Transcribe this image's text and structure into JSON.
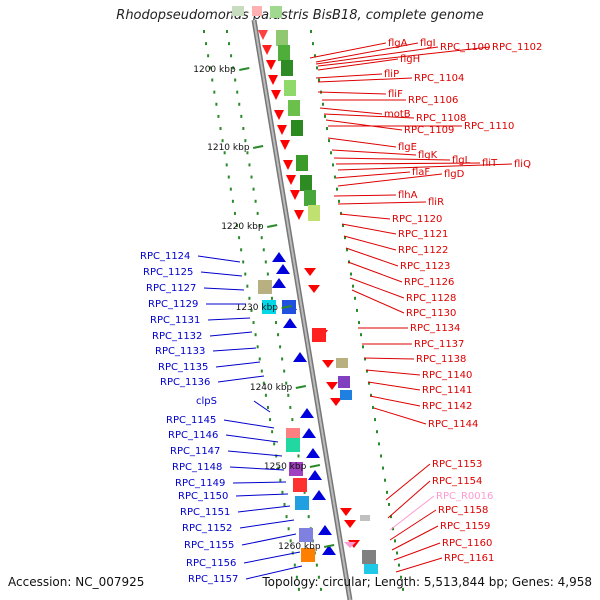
{
  "title": "Rhodopseudomonas palustris BisB18, complete genome",
  "footer": {
    "accession": "Accession: NC_007925",
    "stats": "Topology: circular; Length: 5,513,844 bp; Genes: 4,958"
  },
  "colors": {
    "forward": "#ff0000",
    "reverse": "#0000dd",
    "rna": "#ff9ad0",
    "axis": "#999999"
  },
  "kbp_ticks": [
    {
      "label": "1200 kbp",
      "kbp": 1200
    },
    {
      "label": "1210 kbp",
      "kbp": 1210
    },
    {
      "label": "1220 kbp",
      "kbp": 1220
    },
    {
      "label": "1230 kbp",
      "kbp": 1230
    },
    {
      "label": "1240 kbp",
      "kbp": 1240
    },
    {
      "label": "1250 kbp",
      "kbp": 1250
    },
    {
      "label": "1260 kbp",
      "kbp": 1260
    }
  ],
  "right_labels": [
    {
      "text": "flgA",
      "color": "#dd0000"
    },
    {
      "text": "flgI",
      "color": "#dd0000"
    },
    {
      "text": "RPC_1100",
      "color": "#dd0000"
    },
    {
      "text": "RPC_1102",
      "color": "#dd0000"
    },
    {
      "text": "flgH",
      "color": "#dd0000"
    },
    {
      "text": "fliP",
      "color": "#dd0000"
    },
    {
      "text": "RPC_1104",
      "color": "#dd0000"
    },
    {
      "text": "fliF",
      "color": "#dd0000"
    },
    {
      "text": "RPC_1106",
      "color": "#dd0000"
    },
    {
      "text": "motB",
      "color": "#dd0000"
    },
    {
      "text": "RPC_1108",
      "color": "#dd0000"
    },
    {
      "text": "RPC_1109",
      "color": "#dd0000"
    },
    {
      "text": "RPC_1110",
      "color": "#dd0000"
    },
    {
      "text": "flgE",
      "color": "#dd0000"
    },
    {
      "text": "flgK",
      "color": "#dd0000"
    },
    {
      "text": "flgL",
      "color": "#dd0000"
    },
    {
      "text": "fliT",
      "color": "#dd0000"
    },
    {
      "text": "fliQ",
      "color": "#dd0000"
    },
    {
      "text": "flaF",
      "color": "#dd0000"
    },
    {
      "text": "flgD",
      "color": "#dd0000"
    },
    {
      "text": "flhA",
      "color": "#dd0000"
    },
    {
      "text": "fliR",
      "color": "#dd0000"
    },
    {
      "text": "RPC_1120",
      "color": "#dd0000"
    },
    {
      "text": "RPC_1121",
      "color": "#dd0000"
    },
    {
      "text": "RPC_1122",
      "color": "#dd0000"
    },
    {
      "text": "RPC_1123",
      "color": "#dd0000"
    },
    {
      "text": "RPC_1126",
      "color": "#dd0000"
    },
    {
      "text": "RPC_1128",
      "color": "#dd0000"
    },
    {
      "text": "RPC_1130",
      "color": "#dd0000"
    },
    {
      "text": "RPC_1134",
      "color": "#dd0000"
    },
    {
      "text": "RPC_1137",
      "color": "#dd0000"
    },
    {
      "text": "RPC_1138",
      "color": "#dd0000"
    },
    {
      "text": "RPC_1140",
      "color": "#dd0000"
    },
    {
      "text": "RPC_1141",
      "color": "#dd0000"
    },
    {
      "text": "RPC_1142",
      "color": "#dd0000"
    },
    {
      "text": "RPC_1144",
      "color": "#dd0000"
    },
    {
      "text": "RPC_1153",
      "color": "#dd0000"
    },
    {
      "text": "RPC_1154",
      "color": "#dd0000"
    },
    {
      "text": "RPC_R0016",
      "color": "#ff9ad0"
    },
    {
      "text": "RPC_1158",
      "color": "#dd0000"
    },
    {
      "text": "RPC_1159",
      "color": "#dd0000"
    },
    {
      "text": "RPC_1160",
      "color": "#dd0000"
    },
    {
      "text": "RPC_1161",
      "color": "#dd0000"
    }
  ],
  "left_labels": [
    {
      "text": "RPC_1124"
    },
    {
      "text": "RPC_1125"
    },
    {
      "text": "RPC_1127"
    },
    {
      "text": "RPC_1129"
    },
    {
      "text": "RPC_1131"
    },
    {
      "text": "RPC_1132"
    },
    {
      "text": "RPC_1133"
    },
    {
      "text": "RPC_1135"
    },
    {
      "text": "RPC_1136"
    },
    {
      "text": "clpS"
    },
    {
      "text": "RPC_1145"
    },
    {
      "text": "RPC_1146"
    },
    {
      "text": "RPC_1147"
    },
    {
      "text": "RPC_1148"
    },
    {
      "text": "RPC_1149"
    },
    {
      "text": "RPC_1150"
    },
    {
      "text": "RPC_1151"
    },
    {
      "text": "RPC_1152"
    },
    {
      "text": "RPC_1155"
    },
    {
      "text": "RPC_1156"
    },
    {
      "text": "RPC_1157"
    }
  ]
}
